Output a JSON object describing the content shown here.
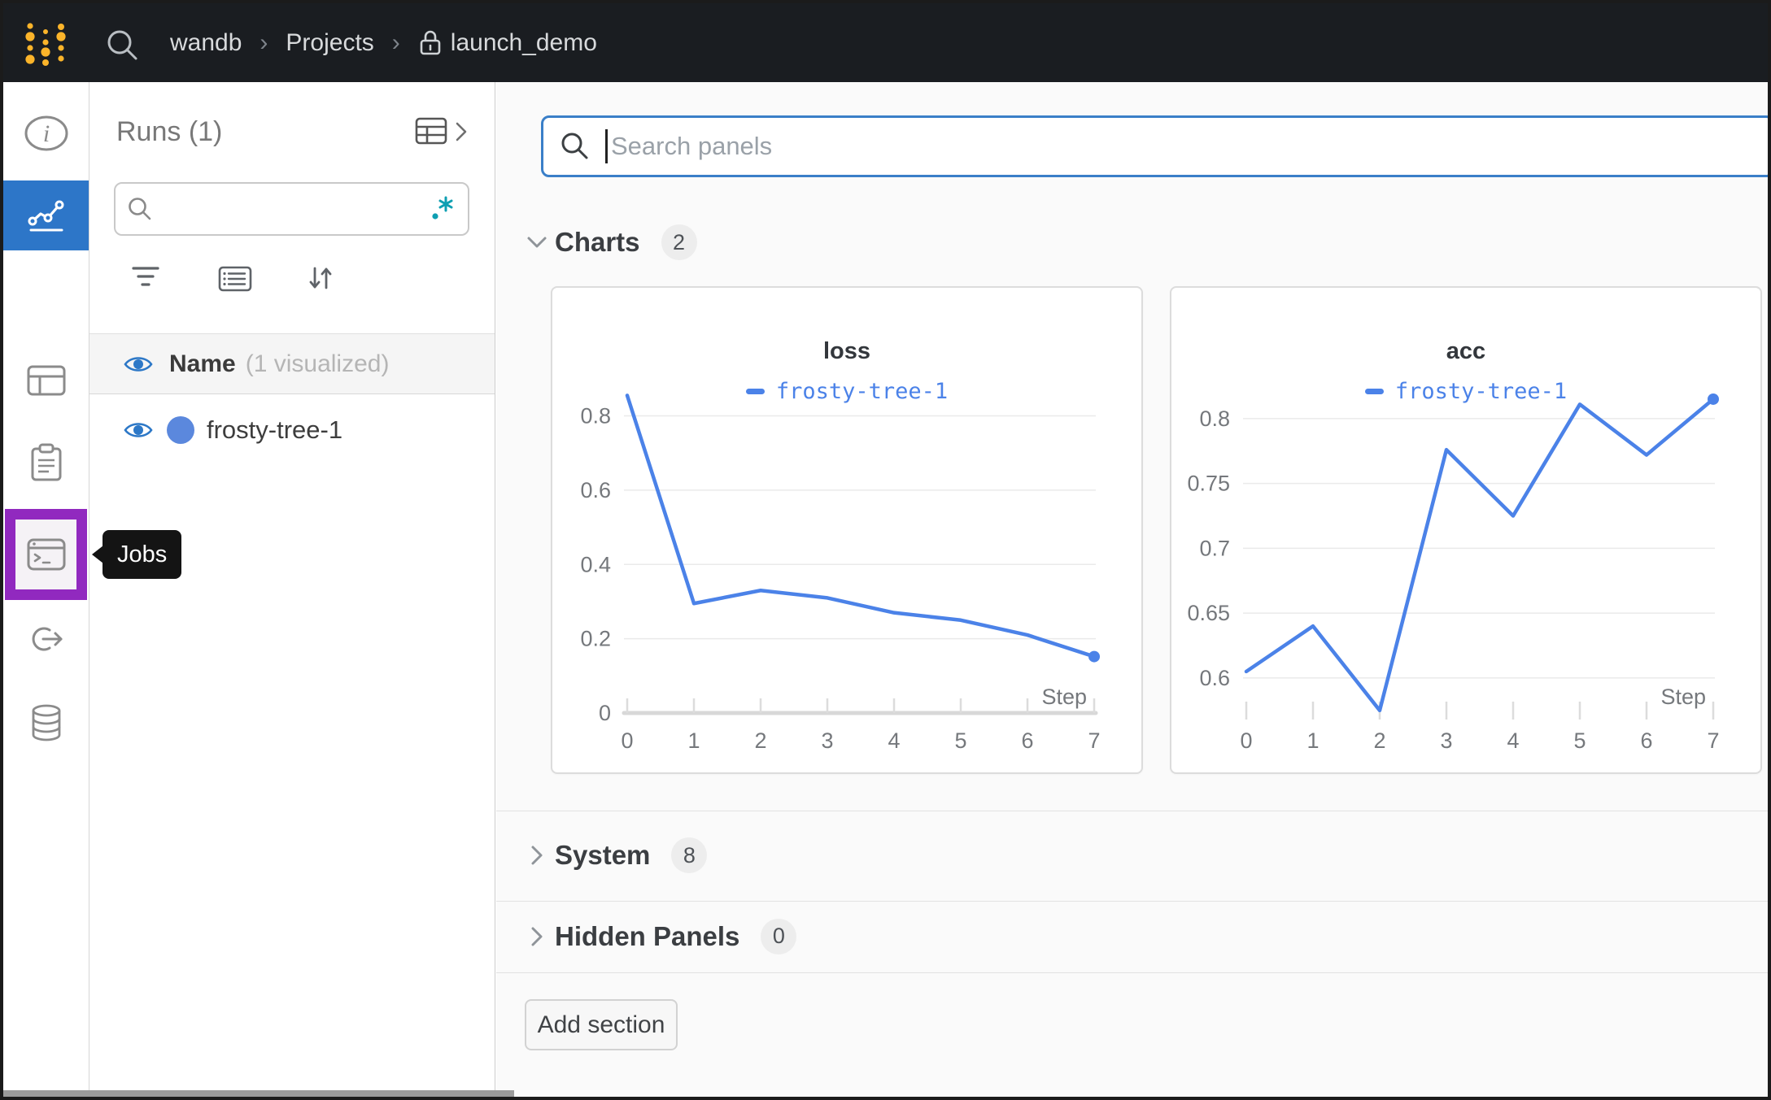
{
  "topbar": {
    "breadcrumb": {
      "item1": "wandb",
      "item2": "Projects",
      "item3": "launch_demo",
      "separator": "›"
    }
  },
  "sidebar": {
    "tooltip_label": "Jobs"
  },
  "runs_panel": {
    "title": "Runs (1)",
    "search_value": "",
    "regex_glyph": ".*",
    "columns_header": {
      "name": "Name",
      "visualized": "(1 visualized)"
    },
    "run": {
      "name": "frosty-tree-1",
      "dot_color": "#5b88dd"
    }
  },
  "main": {
    "panel_search": {
      "placeholder": "Search panels",
      "value": ""
    },
    "sections": [
      {
        "label": "Charts",
        "count": "2"
      },
      {
        "label": "System",
        "count": "8"
      },
      {
        "label": "Hidden Panels",
        "count": "0"
      }
    ],
    "add_section_label": "Add section"
  },
  "chart_data": [
    {
      "type": "line",
      "title": "loss",
      "xlabel": "Step",
      "series": [
        {
          "name": "frosty-tree-1",
          "color": "#4b82e8",
          "x": [
            0,
            1,
            2,
            3,
            4,
            5,
            6,
            7
          ],
          "values": [
            0.855,
            0.295,
            0.33,
            0.31,
            0.27,
            0.25,
            0.21,
            0.152
          ]
        }
      ],
      "x_ticks": [
        0,
        1,
        2,
        3,
        4,
        5,
        6,
        7
      ],
      "y_ticks": [
        0,
        0.2,
        0.4,
        0.6,
        0.8
      ],
      "ylim": [
        0,
        0.88
      ],
      "xlim": [
        0,
        7
      ],
      "grid": true,
      "legend_position": "top",
      "baseline_axis": true,
      "end_point_marker": true
    },
    {
      "type": "line",
      "title": "acc",
      "xlabel": "Step",
      "series": [
        {
          "name": "frosty-tree-1",
          "color": "#4b82e8",
          "x": [
            0,
            1,
            2,
            3,
            4,
            5,
            6,
            7
          ],
          "values": [
            0.605,
            0.64,
            0.575,
            0.776,
            0.725,
            0.811,
            0.772,
            0.815
          ]
        }
      ],
      "x_ticks": [
        0,
        1,
        2,
        3,
        4,
        5,
        6,
        7
      ],
      "y_ticks": [
        0.6,
        0.65,
        0.7,
        0.75,
        0.8
      ],
      "ylim": [
        0.573,
        0.825
      ],
      "xlim": [
        0,
        7
      ],
      "grid": true,
      "legend_position": "top",
      "baseline_axis": false,
      "end_point_marker": true
    }
  ],
  "colors": {
    "topbar_bg": "#1a1d21",
    "accent_blue": "#2d76c8",
    "highlight_purple": "#9129bf",
    "line_blue": "#4b82e8",
    "teal_regex": "#0e9fb2",
    "run_dot_blue": "#5b88dd",
    "logo_yellow": "#fbb42a"
  }
}
